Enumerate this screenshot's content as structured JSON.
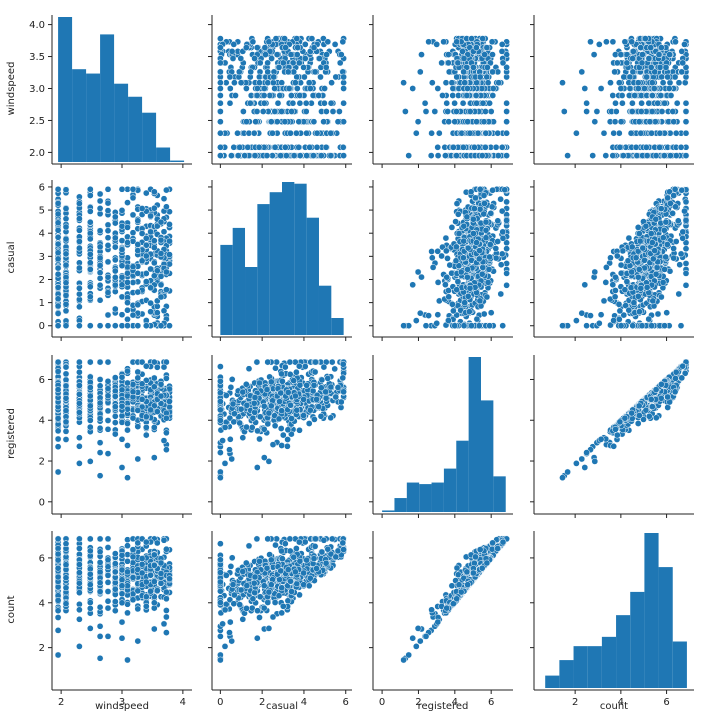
{
  "chart_data": {
    "type": "scatter",
    "kind": "pairplot",
    "variables": [
      "windspeed",
      "casual",
      "registered",
      "count"
    ],
    "color": "#1f77b4",
    "marker_edge_color": "#ffffff",
    "grid": false,
    "axes": {
      "windspeed": {
        "label": "windspeed",
        "lim": [
          1.85,
          4.15
        ],
        "ticks": [
          2,
          3,
          4
        ],
        "y_ticks": [
          2.0,
          2.5,
          3.0,
          3.5,
          4.0
        ],
        "y_tick_labels": [
          "2.0",
          "2.5",
          "3.0",
          "3.5",
          "4.0"
        ]
      },
      "casual": {
        "label": "casual",
        "lim": [
          -0.4,
          6.3
        ],
        "ticks": [
          0,
          2,
          4,
          6
        ],
        "y_ticks": [
          0,
          1,
          2,
          3,
          4,
          5,
          6
        ],
        "y_tick_labels": [
          "0",
          "1",
          "2",
          "3",
          "4",
          "5",
          "6"
        ]
      },
      "registered": {
        "label": "registered",
        "lim": [
          -0.5,
          7.2
        ],
        "ticks": [
          0,
          2,
          4,
          6
        ],
        "y_ticks": [
          0,
          2,
          4,
          6
        ],
        "y_tick_labels": [
          "0",
          "2",
          "4",
          "6"
        ]
      },
      "count": {
        "label": "count",
        "lim": [
          0.2,
          7.2
        ],
        "ticks": [
          2,
          4,
          6
        ],
        "y_ticks": [
          2,
          4,
          6
        ],
        "y_tick_labels": [
          "2",
          "4",
          "6"
        ]
      }
    },
    "histograms": {
      "windspeed": {
        "edges": [
          1.95,
          2.18,
          2.41,
          2.64,
          2.87,
          3.1,
          3.33,
          3.56,
          3.79,
          4.02
        ],
        "counts": [
          100,
          64,
          61,
          88,
          54,
          45,
          34,
          10,
          1
        ]
      },
      "casual": {
        "edges": [
          0,
          0.59,
          1.18,
          1.77,
          2.36,
          2.95,
          3.54,
          4.13,
          4.72,
          5.31,
          5.9
        ],
        "counts": [
          53,
          63,
          40,
          77,
          84,
          90,
          89,
          69,
          29,
          10
        ]
      },
      "registered": {
        "edges": [
          0,
          0.68,
          1.36,
          2.04,
          2.72,
          3.4,
          4.08,
          4.76,
          5.44,
          6.12,
          6.8
        ],
        "counts": [
          1,
          9,
          19,
          18,
          19,
          28,
          46,
          100,
          72,
          23
        ]
      },
      "count": {
        "edges": [
          0.69,
          1.31,
          1.93,
          2.55,
          3.17,
          3.79,
          4.41,
          5.03,
          5.65,
          6.27,
          6.89
        ],
        "counts": [
          8,
          18,
          27,
          27,
          33,
          47,
          62,
          100,
          78,
          30
        ]
      }
    }
  }
}
